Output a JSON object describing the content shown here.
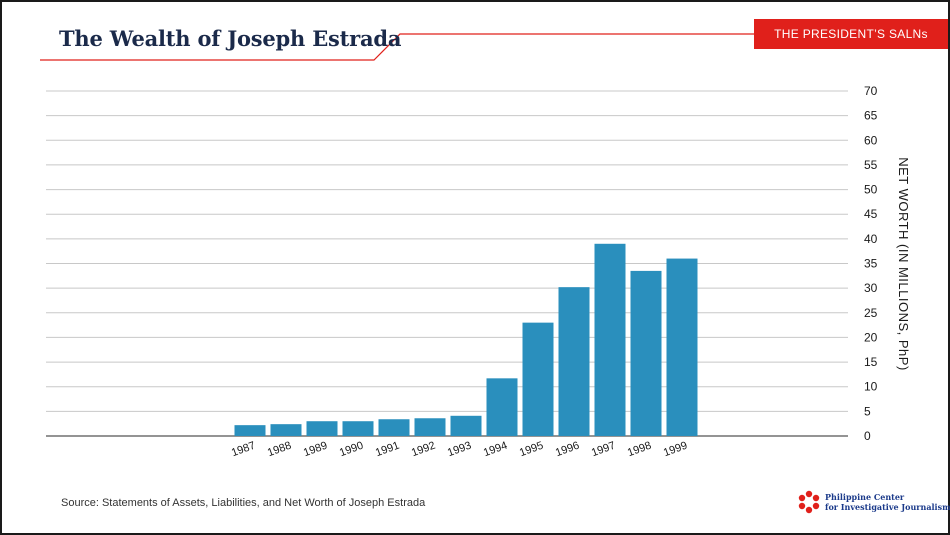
{
  "header": {
    "title": "The Wealth of Joseph Estrada",
    "tag": "THE PRESIDENT’S SALNs",
    "accent_color": "#e0201b",
    "title_color": "#1b2a4a"
  },
  "chart_data": {
    "type": "bar",
    "categories": [
      "1987",
      "1988",
      "1989",
      "1990",
      "1991",
      "1992",
      "1993",
      "1994",
      "1995",
      "1996",
      "1997",
      "1998",
      "1999"
    ],
    "values": [
      2.2,
      2.4,
      3.0,
      3.0,
      3.4,
      3.6,
      4.1,
      11.7,
      23.0,
      30.2,
      39.0,
      33.5,
      36.0
    ],
    "ylabel": "NET WORTH (IN MILLIONS, PhP)",
    "y_ticks": [
      "70",
      "65",
      "60",
      "55",
      "50",
      "45",
      "40",
      "35",
      "30",
      "25",
      "20",
      "15",
      "10",
      "5",
      "0"
    ],
    "ylim": [
      0,
      70
    ],
    "y_axis_side": "right",
    "grid": true,
    "bar_color": "#2a8fbd"
  },
  "footer": {
    "source": "Source: Statements of Assets, Liabilities, and Net Worth of Joseph Estrada",
    "logo_line1": "Philippine Center",
    "logo_line2": "for Investigative Journalism",
    "logo_icon": "pcij-flower-icon"
  }
}
